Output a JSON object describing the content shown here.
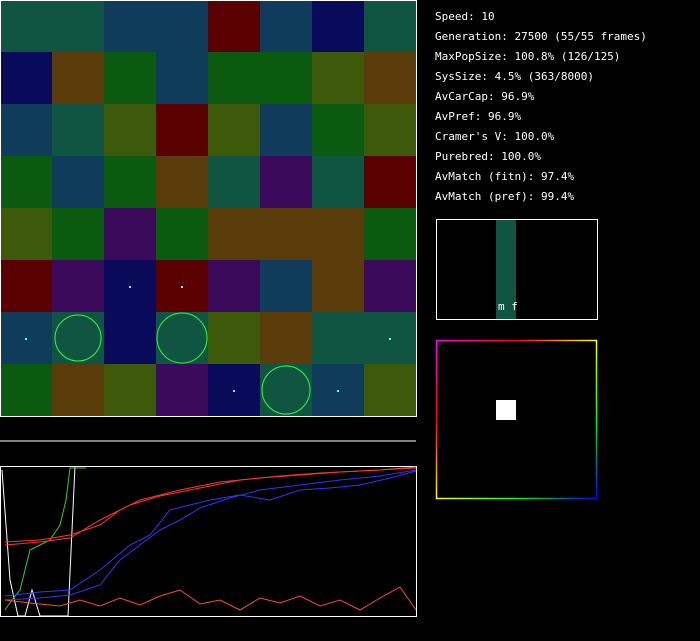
{
  "stats": [
    "Speed: 10",
    "Generation: 27500 (55/55 frames)",
    "MaxPopSize: 100.8% (126/125)",
    "SysSize: 4.5% (363/8000)",
    "AvCarCap: 96.9%",
    "AvPref: 96.9%",
    "Cramer's V: 100.0%",
    "Purebred: 100.0%",
    "AvMatch (fitn): 97.4%",
    "AvMatch (pref): 99.4%"
  ],
  "histogram_label": "m f"
}
